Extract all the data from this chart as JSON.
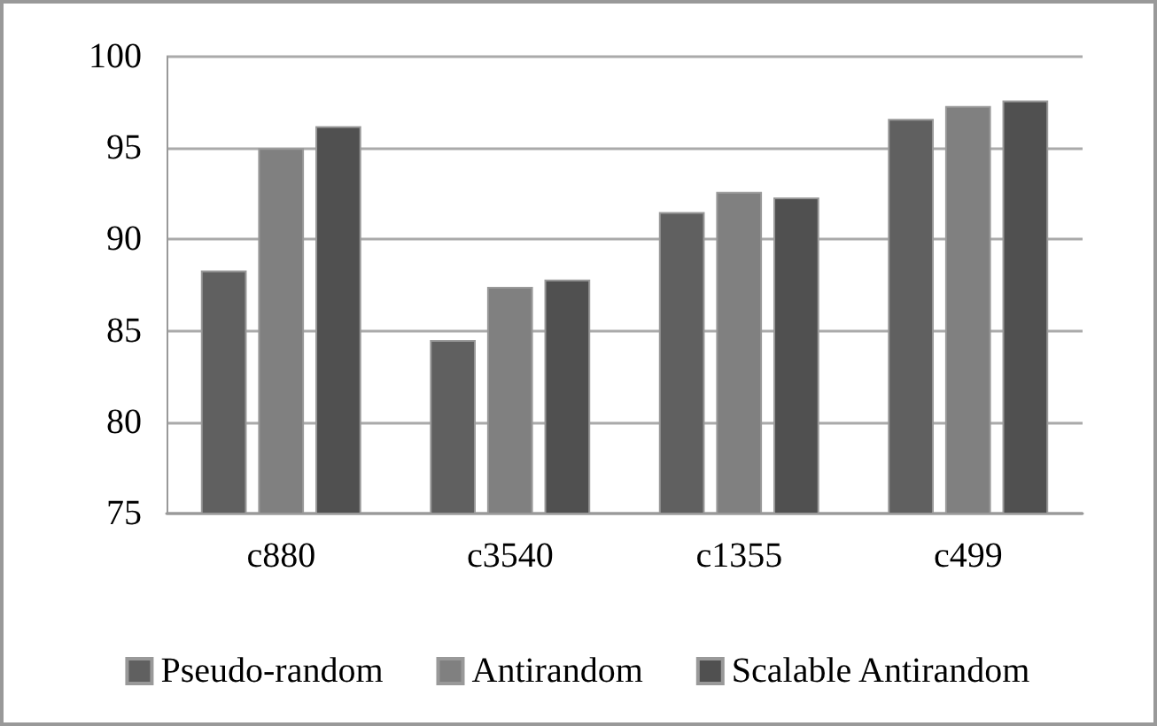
{
  "chart_data": {
    "type": "bar",
    "categories": [
      "c880",
      "c3540",
      "c1355",
      "c499"
    ],
    "series": [
      {
        "name": "Pseudo-random",
        "color": "#606060",
        "values": [
          88.3,
          84.5,
          91.5,
          96.6
        ]
      },
      {
        "name": "Antirandom",
        "color": "#808080",
        "values": [
          95.0,
          87.4,
          92.6,
          97.3
        ]
      },
      {
        "name": "Scalable Antirandom",
        "color": "#505050",
        "values": [
          96.2,
          87.8,
          92.3,
          97.6
        ]
      }
    ],
    "ylim": [
      75,
      100
    ],
    "yticks": [
      75,
      80,
      85,
      90,
      95,
      100
    ],
    "grid": "y",
    "legend": "bottom"
  }
}
